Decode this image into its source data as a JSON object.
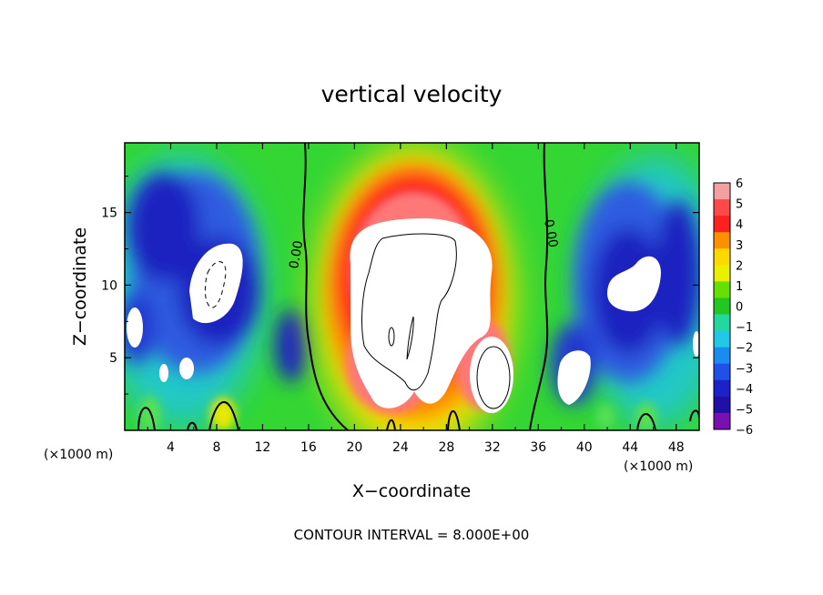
{
  "chart_data": {
    "type": "heatmap",
    "title": "vertical velocity",
    "xlabel": "X−coordinate",
    "ylabel": "Z−coordinate",
    "x_unit": "(×1000 m)",
    "y_unit": "(×1000 m)",
    "xlim": [
      0,
      50
    ],
    "ylim": [
      0,
      19.8
    ],
    "x_ticks": [
      "4",
      "8",
      "12",
      "16",
      "20",
      "24",
      "28",
      "32",
      "36",
      "40",
      "44",
      "48"
    ],
    "x_tick_values": [
      4,
      8,
      12,
      16,
      20,
      24,
      28,
      32,
      36,
      40,
      44,
      48
    ],
    "y_ticks": [
      "5",
      "10",
      "15"
    ],
    "y_tick_values": [
      5,
      10,
      15
    ],
    "colorbar": {
      "levels": [
        "6",
        "5",
        "4",
        "3",
        "2",
        "1",
        "0",
        "−1",
        "−2",
        "−3",
        "−4",
        "−5",
        "−6"
      ],
      "range": [
        -6,
        6
      ]
    },
    "contour_label_left": "0.00",
    "contour_label_right": "0.00",
    "contour_interval_text": "CONTOUR INTERVAL = 8.000E+00",
    "features": [
      {
        "kind": "updraft",
        "x_center": 26,
        "z_top": 17,
        "z_bottom": 1,
        "value_max": 6
      },
      {
        "kind": "downdraft",
        "x_center": 8,
        "z_center": 9,
        "value_min": -6
      },
      {
        "kind": "downdraft",
        "x_center": 45,
        "z_center": 9,
        "value_min": -6
      }
    ]
  }
}
